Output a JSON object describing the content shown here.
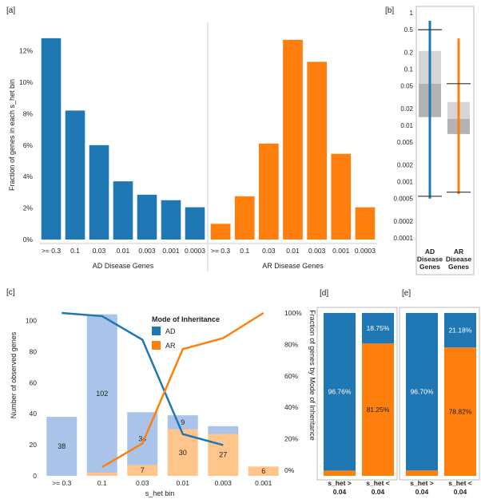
{
  "colors": {
    "ad": "#1f77b4",
    "ar": "#ff7f0e",
    "ad_light": "#a9c4e8",
    "ar_light": "#ffc58a",
    "axis": "#888888",
    "text": "#222222",
    "grid": "#dddddd"
  },
  "chart_data": [
    {
      "panel": "[a]",
      "type": "bar",
      "ylabel": "Fraction of genes in each s_het bin",
      "ylim": [
        0,
        13.3
      ],
      "yticks": [
        0,
        2,
        4,
        6,
        8,
        10,
        12
      ],
      "ytick_labels": [
        "0%",
        "2%",
        "4%",
        "6%",
        "8%",
        "10%",
        "12%"
      ],
      "categories": [
        ">= 0.3",
        "0.1",
        "0.03",
        "0.01",
        "0.003",
        "0.001",
        "0.0003"
      ],
      "series": [
        {
          "name": "AD Disease Genes",
          "color_key": "ad",
          "values": [
            12.8,
            8.2,
            6.0,
            3.7,
            2.85,
            2.5,
            2.05
          ]
        },
        {
          "name": "AR Disease Genes",
          "color_key": "ar",
          "values": [
            1.0,
            2.75,
            6.1,
            12.7,
            11.3,
            5.45,
            2.05
          ]
        }
      ]
    },
    {
      "panel": "[b]",
      "type": "box",
      "scale": "log",
      "yticks": [
        1,
        0.5,
        0.2,
        0.1,
        0.05,
        0.02,
        0.01,
        0.005,
        0.002,
        0.001,
        0.0005,
        0.0002,
        0.0001
      ],
      "ytick_labels": [
        "1",
        "0.5",
        "0.2",
        "0.1",
        "0.05",
        "0.02",
        "0.01",
        "0.005",
        "0.002",
        "0.001",
        "0.0005",
        "0.0002",
        "0.0001"
      ],
      "groups": [
        {
          "label_lines": [
            "AD",
            "Disease",
            "Genes"
          ],
          "color_key": "ad",
          "whisker_low": 0.00055,
          "whisker_high": 0.5,
          "box_low": 0.014,
          "box_high": 0.21,
          "median": 0.055,
          "points_low": 0.0005,
          "points_high": 0.72
        },
        {
          "label_lines": [
            "AR",
            "Disease",
            "Genes"
          ],
          "color_key": "ar",
          "whisker_low": 0.00065,
          "whisker_high": 0.055,
          "box_low": 0.007,
          "box_high": 0.026,
          "median": 0.013,
          "points_low": 0.0006,
          "points_high": 0.35
        }
      ]
    },
    {
      "panel": "[c]",
      "type": "bar+line",
      "xlabel": "s_het bin",
      "ylabel_left": "Number of observed genes",
      "ylabel_right": "Fraction of genes by Mode of Inheritance",
      "ylim_left": [
        0,
        110
      ],
      "yticks_left": [
        0,
        20,
        40,
        60,
        80,
        100
      ],
      "ylim_right": [
        0,
        100
      ],
      "yticks_right": [
        "0%",
        "20%",
        "40%",
        "60%",
        "80%",
        "100%"
      ],
      "categories": [
        ">= 0.3",
        "0.1",
        "0.03",
        "0.01",
        "0.003",
        "0.001"
      ],
      "legend_title": "Mode of Inheritance",
      "legend": [
        "AD",
        "AR"
      ],
      "series": [
        {
          "name": "AD",
          "color_key": "ad",
          "counts": [
            38,
            102,
            34,
            9,
            5,
            0
          ],
          "fraction": [
            100,
            98,
            83,
            23,
            16,
            null
          ]
        },
        {
          "name": "AR",
          "color_key": "ar",
          "counts": [
            0,
            2,
            7,
            30,
            27,
            6
          ],
          "fraction": [
            null,
            2,
            17,
            77,
            84,
            100
          ]
        }
      ],
      "bar_labels": [
        {
          "cat": 0,
          "series": "AD",
          "text": "38"
        },
        {
          "cat": 1,
          "series": "AD",
          "text": "102"
        },
        {
          "cat": 2,
          "series": "AD",
          "text": "34"
        },
        {
          "cat": 2,
          "series": "AR",
          "text": "7"
        },
        {
          "cat": 3,
          "series": "AD",
          "text": "9"
        },
        {
          "cat": 3,
          "series": "AR",
          "text": "30"
        },
        {
          "cat": 4,
          "series": "AR",
          "text": "27"
        },
        {
          "cat": 5,
          "series": "AR",
          "text": "6"
        }
      ]
    },
    {
      "panel": "[d]",
      "type": "stacked-bar",
      "categories": [
        [
          "s_het >",
          "0.04"
        ],
        [
          "s_het <",
          "0.04"
        ]
      ],
      "ad": [
        96.76,
        18.75
      ],
      "ar": [
        3.24,
        81.25
      ],
      "labels_ad": [
        "96.76%",
        "18.75%"
      ],
      "labels_ar": [
        "",
        "81.25%"
      ]
    },
    {
      "panel": "[e]",
      "type": "stacked-bar",
      "categories": [
        [
          "s_het >",
          "0.04"
        ],
        [
          "s_het <",
          "0.04"
        ]
      ],
      "ad": [
        96.7,
        21.18
      ],
      "ar": [
        3.3,
        78.82
      ],
      "labels_ad": [
        "96.70%",
        "21.18%"
      ],
      "labels_ar": [
        "",
        "78.82%"
      ]
    }
  ]
}
